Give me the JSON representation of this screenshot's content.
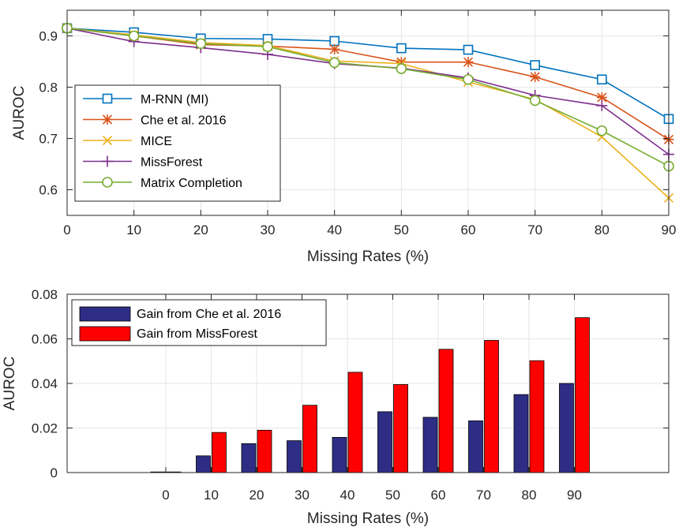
{
  "chart_data": [
    {
      "type": "line",
      "xlabel": "Missing Rates (%)",
      "ylabel": "AUROC",
      "x": [
        0,
        10,
        20,
        30,
        40,
        50,
        60,
        70,
        80,
        90
      ],
      "xlim": [
        0,
        90
      ],
      "ylim": [
        0.55,
        0.95
      ],
      "xticks": [
        "0",
        "10",
        "20",
        "30",
        "40",
        "50",
        "60",
        "70",
        "80",
        "90"
      ],
      "yticks": [
        "0.6",
        "0.7",
        "0.8",
        "0.9"
      ],
      "grid": true,
      "legend_position": "bottom-left",
      "series": [
        {
          "name": "M-RNN (MI)",
          "color": "#0072BD",
          "marker": "square",
          "values": [
            0.915,
            0.907,
            0.895,
            0.894,
            0.89,
            0.876,
            0.873,
            0.843,
            0.815,
            0.738
          ]
        },
        {
          "name": "Che et al. 2016",
          "color": "#D95319",
          "marker": "asterisk",
          "values": [
            0.915,
            0.9,
            0.883,
            0.88,
            0.874,
            0.849,
            0.849,
            0.82,
            0.78,
            0.698
          ]
        },
        {
          "name": "MICE",
          "color": "#EDB120",
          "marker": "x",
          "values": [
            0.915,
            0.902,
            0.887,
            0.881,
            0.851,
            0.846,
            0.81,
            0.776,
            0.703,
            0.584
          ]
        },
        {
          "name": "MissForest",
          "color": "#7E2F8E",
          "marker": "plus",
          "values": [
            0.915,
            0.889,
            0.877,
            0.864,
            0.846,
            0.837,
            0.818,
            0.784,
            0.764,
            0.669
          ]
        },
        {
          "name": "Matrix Completion",
          "color": "#77AC30",
          "marker": "circle",
          "values": [
            0.915,
            0.9,
            0.885,
            0.879,
            0.848,
            0.836,
            0.815,
            0.774,
            0.715,
            0.646
          ]
        }
      ]
    },
    {
      "type": "bar",
      "xlabel": "Missing Rates (%)",
      "ylabel": "AUROC",
      "categories": [
        "0",
        "10",
        "20",
        "30",
        "40",
        "50",
        "60",
        "70",
        "80",
        "90"
      ],
      "ylim": [
        0,
        0.08
      ],
      "yticks": [
        "0",
        "0.02",
        "0.04",
        "0.06",
        "0.08"
      ],
      "grid": true,
      "legend_position": "top-left",
      "series": [
        {
          "name": "Gain from Che et al. 2016",
          "color": "#2E2D85",
          "values": [
            0.0,
            0.0075,
            0.013,
            0.0143,
            0.0158,
            0.0273,
            0.0248,
            0.0232,
            0.035,
            0.04
          ]
        },
        {
          "name": "Gain from MissForest",
          "color": "#FF0000",
          "values": [
            0.0,
            0.018,
            0.019,
            0.0302,
            0.045,
            0.0395,
            0.0553,
            0.0593,
            0.0502,
            0.0695
          ]
        }
      ]
    }
  ]
}
